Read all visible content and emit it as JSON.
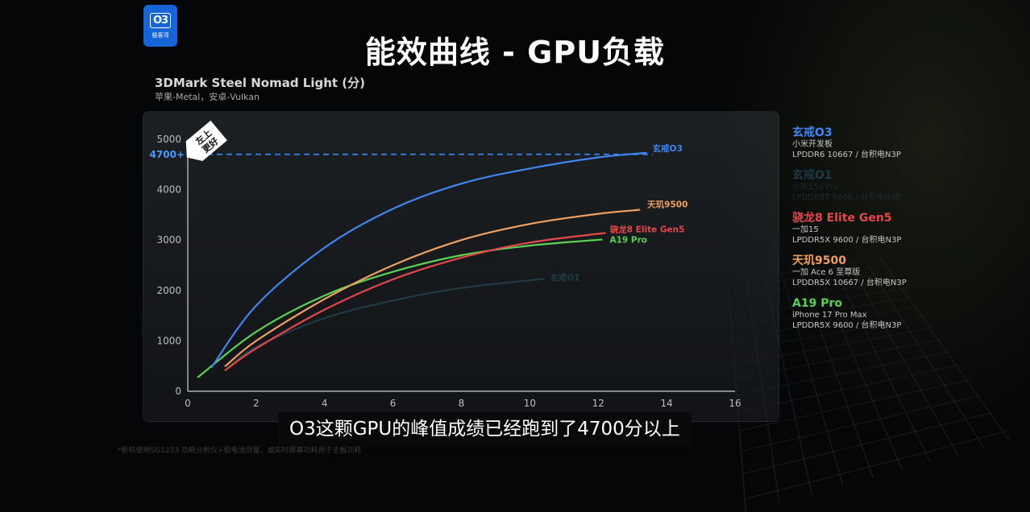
{
  "logo": {
    "mark": "O3",
    "name": "极客湾"
  },
  "header": {
    "title": "能效曲线 - GPU负载"
  },
  "chart_data": {
    "type": "line",
    "title": "3DMark Steel Nomad Light (分)",
    "subtitle": "苹果-Metal，安卓-Vulkan",
    "xlabel": "",
    "ylabel": "",
    "xlim": [
      0,
      16
    ],
    "ylim": [
      0,
      5000
    ],
    "x_ticks": [
      0,
      2,
      4,
      6,
      8,
      10,
      12,
      14,
      16
    ],
    "y_ticks": [
      0,
      1000,
      2000,
      3000,
      4000,
      5000
    ],
    "grid": false,
    "reference_line": {
      "y": 4700,
      "label": "4700+",
      "style": "dashed",
      "color": "#2f78e6"
    },
    "annotation_badge": "左上更好",
    "series": [
      {
        "name": "玄戒O3",
        "color": "#3f86f2",
        "x": [
          0.7,
          2,
          4,
          6,
          8,
          10,
          12,
          13.4
        ],
        "y": [
          480,
          1700,
          2850,
          3620,
          4120,
          4420,
          4640,
          4730
        ]
      },
      {
        "name": "玄戒O1",
        "color": "#213a44",
        "x": [
          1.1,
          2,
          4,
          6,
          8,
          10.4
        ],
        "y": [
          420,
          880,
          1450,
          1800,
          2050,
          2230
        ]
      },
      {
        "name": "骁龙8 Elite Gen5",
        "color": "#e6474a",
        "x": [
          1.1,
          2,
          4,
          6,
          8,
          10,
          12.2
        ],
        "y": [
          420,
          850,
          1620,
          2220,
          2650,
          2950,
          3140
        ]
      },
      {
        "name": "天玑9500",
        "color": "#f0a060",
        "x": [
          1.1,
          2,
          4,
          6,
          8,
          10,
          12,
          13.2
        ],
        "y": [
          500,
          1000,
          1830,
          2500,
          3000,
          3320,
          3520,
          3600
        ]
      },
      {
        "name": "A19 Pro",
        "color": "#5ad150",
        "x": [
          0.3,
          2,
          4,
          6,
          8,
          10,
          12.1
        ],
        "y": [
          280,
          1180,
          1900,
          2370,
          2700,
          2890,
          3010
        ]
      }
    ]
  },
  "legend": [
    {
      "name": "玄戒O3",
      "device": "小米开发板",
      "memory": "LPDDR6 10667 / 台积电N3P",
      "color": "#3f86f2",
      "dim": false
    },
    {
      "name": "玄戒O1",
      "device": "小米15s Pro",
      "memory": "LPDDR5T 9600 / 台积电N3E",
      "color": "#213a44",
      "dim": true
    },
    {
      "name": "骁龙8 Elite Gen5",
      "device": "一加15",
      "memory": "LPDDR5X 9600 / 台积电N3P",
      "color": "#e6474a",
      "dim": false
    },
    {
      "name": "天玑9500",
      "device": "一加 Ace 6 至尊版",
      "memory": "LPDDR5X 10667 / 台积电N3P",
      "color": "#f0a060",
      "dim": false
    },
    {
      "name": "A19 Pro",
      "device": "iPhone 17 Pro Max",
      "memory": "LPDDR5X 9600 / 台积电N3P",
      "color": "#5ad150",
      "dim": false
    }
  ],
  "caption": "O3这颗GPU的峰值成绩已经跑到了4700分以上",
  "footnote": "*新机使用SG1233 功耗分析仪+假电池测量，或实时屏幕功耗用于主板功耗"
}
